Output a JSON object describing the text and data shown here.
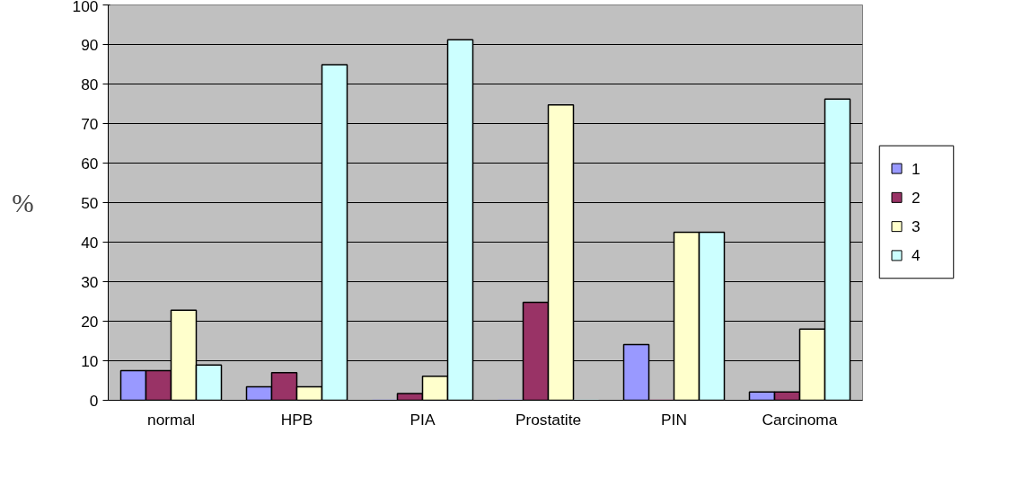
{
  "chart_data": {
    "type": "bar",
    "ylabel": "%",
    "categories": [
      "normal",
      "HPB",
      "PIA",
      "Prostatite",
      "PIN",
      "Carcinoma"
    ],
    "series": [
      {
        "name": "1",
        "color": "#9999ff",
        "values": [
          7.5,
          3.4,
          0,
          0,
          14.1,
          2.1
        ]
      },
      {
        "name": "2",
        "color": "#993366",
        "values": [
          7.5,
          7.0,
          1.7,
          24.8,
          0,
          2.1
        ]
      },
      {
        "name": "3",
        "color": "#ffffcc",
        "values": [
          22.8,
          3.4,
          6.1,
          74.7,
          42.5,
          18.0
        ]
      },
      {
        "name": "4",
        "color": "#ccffff",
        "values": [
          8.9,
          84.9,
          91.2,
          0,
          42.5,
          76.2
        ]
      }
    ],
    "ylim": [
      0,
      100
    ],
    "yticks": [
      0,
      10,
      20,
      30,
      40,
      50,
      60,
      70,
      80,
      90,
      100
    ],
    "grid": "y",
    "legend": "right"
  }
}
